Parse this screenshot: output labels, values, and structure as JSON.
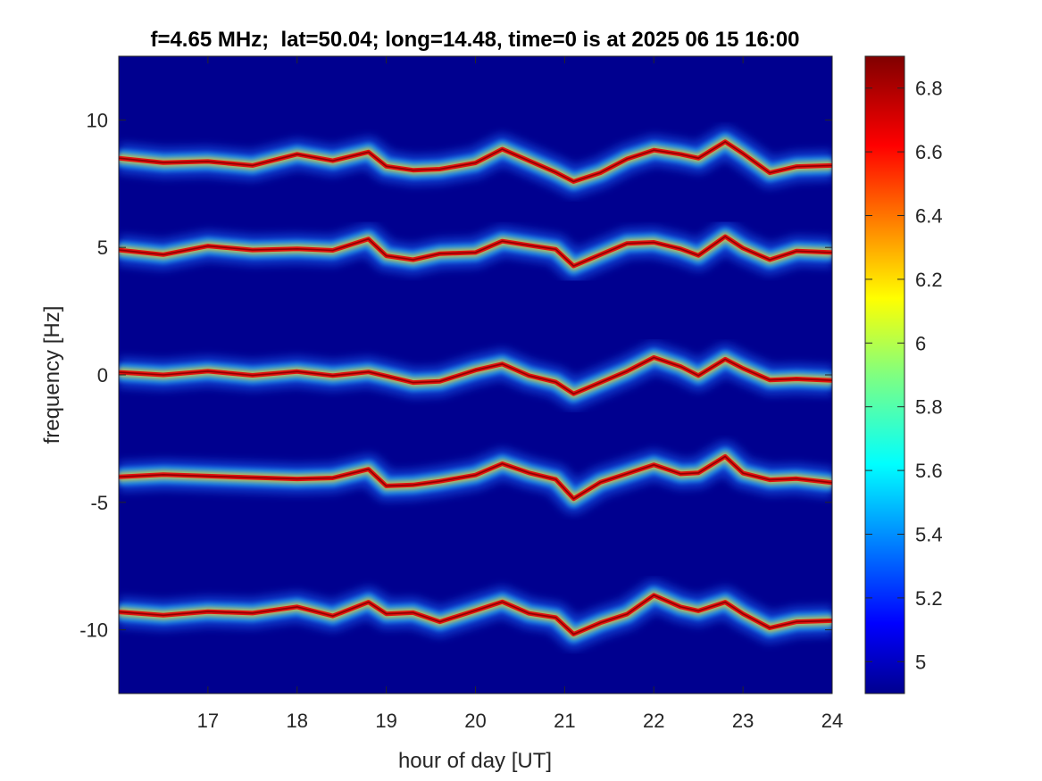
{
  "chart_data": {
    "type": "heatmap",
    "title": "f=4.65 MHz;  lat=50.04; long=14.48, time=0 is at 2025 06 15 16:00",
    "xlabel": "hour of day [UT]",
    "ylabel": "frequency [Hz]",
    "xlim": [
      16,
      24
    ],
    "ylim": [
      -12.5,
      12.5
    ],
    "x_ticks": [
      17,
      18,
      19,
      20,
      21,
      22,
      23,
      24
    ],
    "x_tick_labels": [
      "17",
      "18",
      "19",
      "20",
      "21",
      "22",
      "23",
      "24"
    ],
    "y_ticks": [
      10,
      5,
      0,
      -5,
      -10
    ],
    "y_tick_labels": [
      "10",
      "5",
      "0",
      "-5",
      "-10"
    ],
    "colorbar": {
      "range": [
        4.9,
        6.9
      ],
      "ticks": [
        6.8,
        6.6,
        6.4,
        6.2,
        6,
        5.8,
        5.6,
        5.4,
        5.2,
        5
      ],
      "tick_labels": [
        "6.8",
        "6.6",
        "6.4",
        "6.2",
        "6",
        "5.8",
        "5.6",
        "5.4",
        "5.2",
        "5"
      ],
      "colormap": "jet"
    },
    "background_color": "#00008f",
    "traces": [
      {
        "center_hz": 8.5,
        "points": [
          [
            16.0,
            8.5
          ],
          [
            16.5,
            8.3
          ],
          [
            17.0,
            8.4
          ],
          [
            17.5,
            8.3
          ],
          [
            18.0,
            8.6
          ],
          [
            18.4,
            8.4
          ],
          [
            18.8,
            8.8
          ],
          [
            19.0,
            8.1
          ],
          [
            19.3,
            8.0
          ],
          [
            19.6,
            8.1
          ],
          [
            20.0,
            8.4
          ],
          [
            20.3,
            8.8
          ],
          [
            20.6,
            8.4
          ],
          [
            20.9,
            8.0
          ],
          [
            21.1,
            7.5
          ],
          [
            21.4,
            7.9
          ],
          [
            21.7,
            8.5
          ],
          [
            22.0,
            8.9
          ],
          [
            22.3,
            8.6
          ],
          [
            22.5,
            8.5
          ],
          [
            22.8,
            9.2
          ],
          [
            23.0,
            8.6
          ],
          [
            23.3,
            7.9
          ],
          [
            23.6,
            8.2
          ],
          [
            24.0,
            8.3
          ]
        ]
      },
      {
        "center_hz": 5.0,
        "points": [
          [
            16.0,
            4.9
          ],
          [
            16.5,
            4.8
          ],
          [
            17.0,
            5.0
          ],
          [
            17.5,
            4.9
          ],
          [
            18.0,
            5.0
          ],
          [
            18.4,
            4.8
          ],
          [
            18.8,
            5.3
          ],
          [
            19.0,
            4.7
          ],
          [
            19.3,
            4.6
          ],
          [
            19.6,
            4.7
          ],
          [
            20.0,
            4.8
          ],
          [
            20.3,
            5.3
          ],
          [
            20.6,
            5.0
          ],
          [
            20.9,
            4.9
          ],
          [
            21.1,
            4.3
          ],
          [
            21.4,
            4.8
          ],
          [
            21.7,
            5.1
          ],
          [
            22.0,
            5.2
          ],
          [
            22.3,
            5.0
          ],
          [
            22.5,
            4.6
          ],
          [
            22.8,
            5.4
          ],
          [
            23.0,
            5.0
          ],
          [
            23.3,
            4.6
          ],
          [
            23.6,
            4.8
          ],
          [
            24.0,
            4.8
          ]
        ]
      },
      {
        "center_hz": 0.0,
        "points": [
          [
            16.0,
            0.1
          ],
          [
            16.5,
            0.0
          ],
          [
            17.0,
            0.2
          ],
          [
            17.5,
            -0.1
          ],
          [
            18.0,
            0.1
          ],
          [
            18.4,
            0.0
          ],
          [
            18.8,
            0.2
          ],
          [
            19.0,
            -0.1
          ],
          [
            19.3,
            -0.3
          ],
          [
            19.6,
            -0.2
          ],
          [
            20.0,
            0.1
          ],
          [
            20.3,
            0.4
          ],
          [
            20.6,
            0.0
          ],
          [
            20.9,
            -0.2
          ],
          [
            21.1,
            -0.8
          ],
          [
            21.4,
            -0.3
          ],
          [
            21.7,
            0.2
          ],
          [
            22.0,
            0.6
          ],
          [
            22.3,
            0.3
          ],
          [
            22.5,
            0.0
          ],
          [
            22.8,
            0.7
          ],
          [
            23.0,
            0.2
          ],
          [
            23.3,
            -0.2
          ],
          [
            23.6,
            -0.1
          ],
          [
            24.0,
            -0.3
          ]
        ]
      },
      {
        "center_hz": -4.0,
        "points": [
          [
            16.0,
            -4.0
          ],
          [
            16.5,
            -4.0
          ],
          [
            17.0,
            -4.0
          ],
          [
            17.5,
            -4.0
          ],
          [
            18.0,
            -4.0
          ],
          [
            18.4,
            -4.1
          ],
          [
            18.8,
            -3.7
          ],
          [
            19.0,
            -4.3
          ],
          [
            19.3,
            -4.4
          ],
          [
            19.6,
            -4.2
          ],
          [
            20.0,
            -3.9
          ],
          [
            20.3,
            -3.4
          ],
          [
            20.6,
            -3.9
          ],
          [
            20.9,
            -4.1
          ],
          [
            21.1,
            -4.8
          ],
          [
            21.4,
            -4.3
          ],
          [
            21.7,
            -3.9
          ],
          [
            22.0,
            -3.5
          ],
          [
            22.3,
            -3.8
          ],
          [
            22.5,
            -3.9
          ],
          [
            22.8,
            -3.2
          ],
          [
            23.0,
            -3.8
          ],
          [
            23.3,
            -4.2
          ],
          [
            23.6,
            -4.1
          ],
          [
            24.0,
            -4.2
          ]
        ]
      },
      {
        "center_hz": -9.3,
        "points": [
          [
            16.0,
            -9.3
          ],
          [
            16.5,
            -9.4
          ],
          [
            17.0,
            -9.2
          ],
          [
            17.5,
            -9.4
          ],
          [
            18.0,
            -9.1
          ],
          [
            18.4,
            -9.4
          ],
          [
            18.8,
            -9.0
          ],
          [
            19.0,
            -9.4
          ],
          [
            19.3,
            -9.3
          ],
          [
            19.6,
            -9.6
          ],
          [
            20.0,
            -9.3
          ],
          [
            20.3,
            -8.9
          ],
          [
            20.6,
            -9.3
          ],
          [
            20.9,
            -9.6
          ],
          [
            21.1,
            -10.2
          ],
          [
            21.4,
            -9.7
          ],
          [
            21.7,
            -9.3
          ],
          [
            22.0,
            -8.7
          ],
          [
            22.3,
            -9.1
          ],
          [
            22.5,
            -9.2
          ],
          [
            22.8,
            -9.0
          ],
          [
            23.0,
            -9.4
          ],
          [
            23.3,
            -9.9
          ],
          [
            23.6,
            -9.6
          ],
          [
            24.0,
            -9.7
          ]
        ]
      }
    ]
  }
}
